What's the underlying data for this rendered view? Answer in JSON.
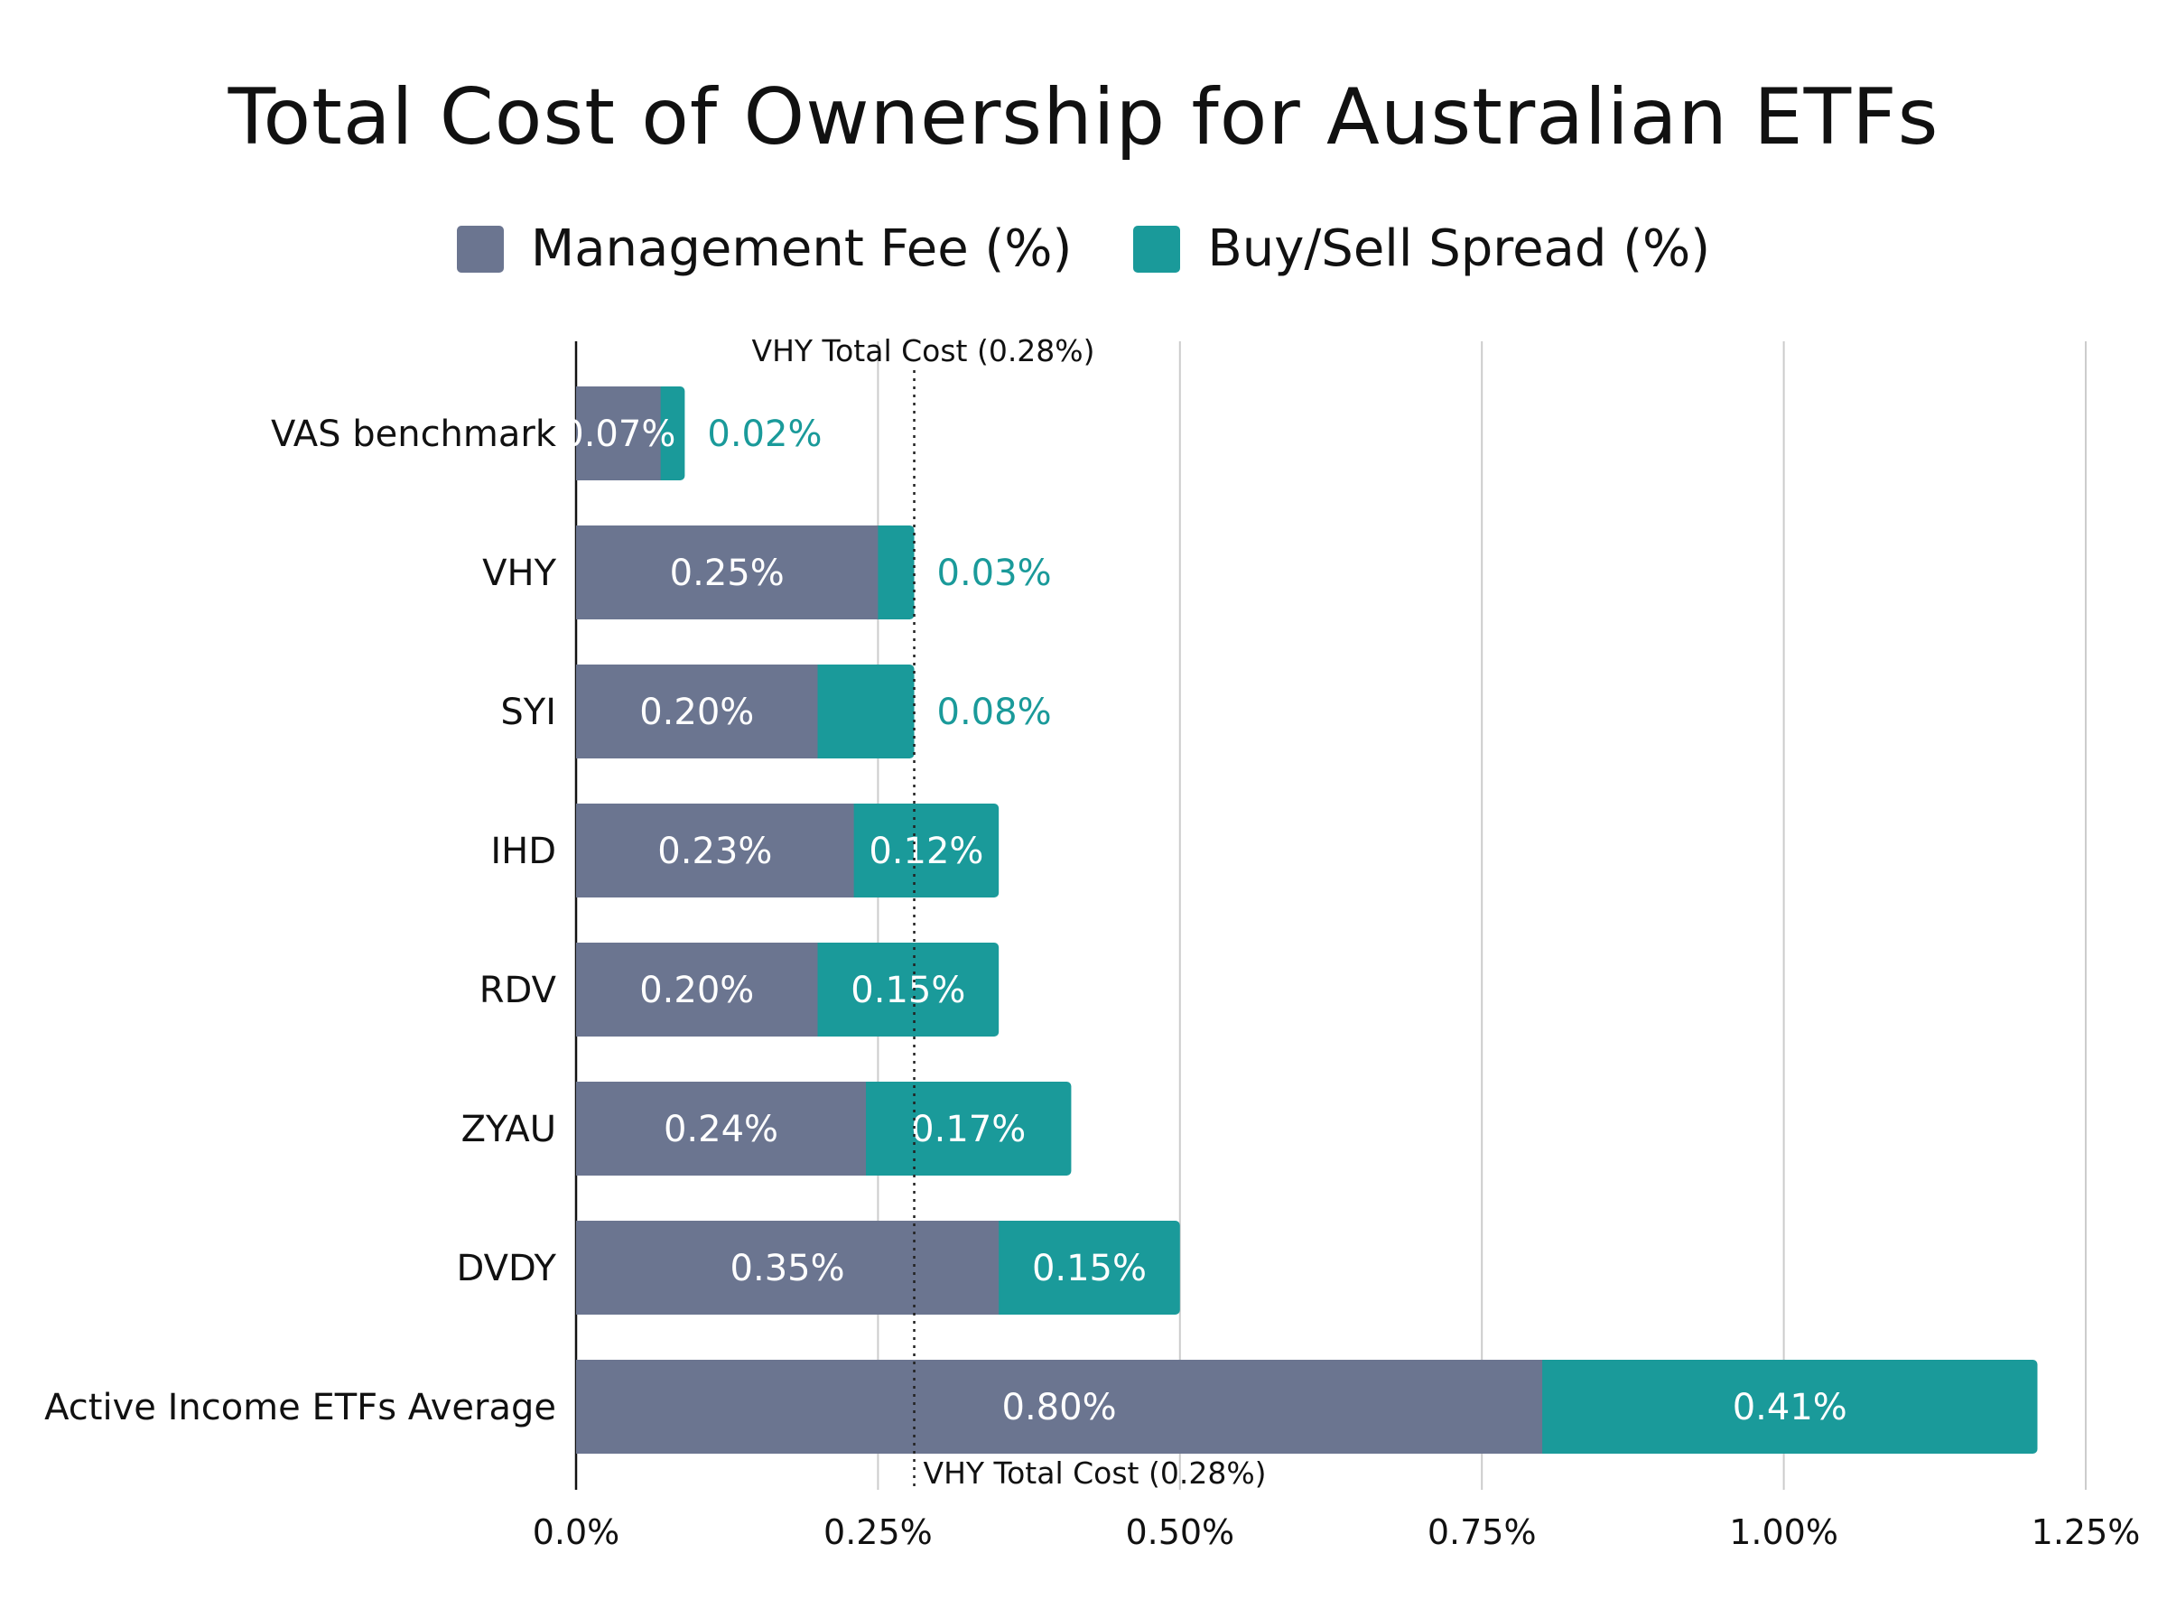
{
  "chart_data": {
    "type": "bar",
    "orientation": "horizontal",
    "stacked": true,
    "title": "Total Cost of Ownership for Australian ETFs",
    "categories": [
      "VAS benchmark",
      "VHY",
      "SYI",
      "IHD",
      "RDV",
      "ZYAU",
      "DVDY",
      "Active Income ETFs Average"
    ],
    "series": [
      {
        "name": "Management Fee (%)",
        "color": "#6b7590",
        "values": [
          0.07,
          0.25,
          0.2,
          0.23,
          0.2,
          0.24,
          0.35,
          0.8
        ],
        "labels": [
          "0.07%",
          "0.25%",
          "0.20%",
          "0.23%",
          "0.20%",
          "0.24%",
          "0.35%",
          "0.80%"
        ]
      },
      {
        "name": "Buy/Sell Spread (%)",
        "color": "#1a9a9a",
        "values": [
          0.02,
          0.03,
          0.08,
          0.12,
          0.15,
          0.17,
          0.15,
          0.41
        ],
        "labels": [
          "0.02%",
          "0.03%",
          "0.08%",
          "0.12%",
          "0.15%",
          "0.17%",
          "0.15%",
          "0.41%"
        ]
      }
    ],
    "xlim": [
      0,
      1.25
    ],
    "x_ticks": [
      0,
      0.25,
      0.5,
      0.75,
      1.0,
      1.25
    ],
    "x_tick_labels": [
      "0.0%",
      "0.25%",
      "0.50%",
      "0.75%",
      "1.00%",
      "1.25%"
    ],
    "grid": "vertical",
    "legend": "top-center",
    "reference_line": {
      "value": 0.28,
      "label_top": "VHY Total Cost (0.28%)",
      "label_bottom": "VHY Total Cost (0.28%)",
      "style": "dotted"
    }
  }
}
